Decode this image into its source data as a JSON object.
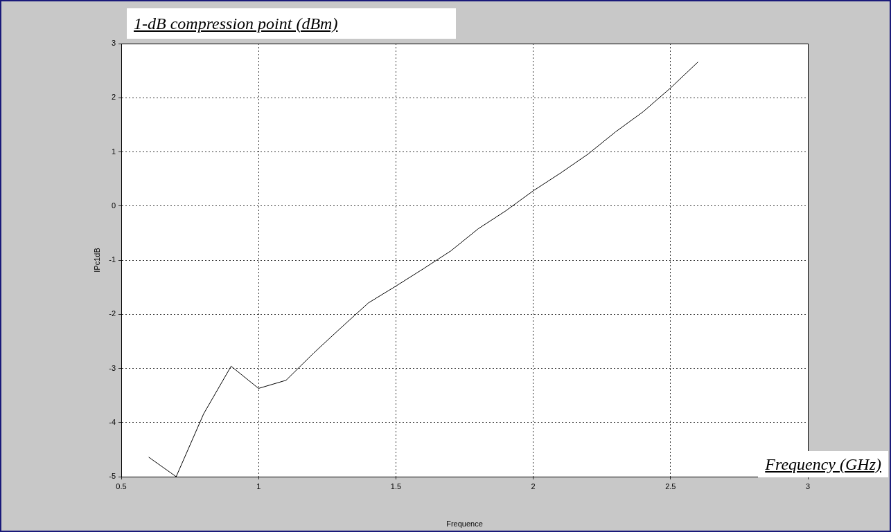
{
  "chart_data": {
    "type": "line",
    "xlabel": "Frequence",
    "ylabel": "IPc1dB",
    "annotations": [
      "1-dB compression point (dBm)",
      "Frequency (GHz)"
    ],
    "x": [
      0.6,
      0.7,
      0.8,
      0.9,
      1.0,
      1.1,
      1.2,
      1.3,
      1.4,
      1.5,
      1.6,
      1.7,
      1.8,
      1.9,
      2.0,
      2.1,
      2.2,
      2.3,
      2.4,
      2.5,
      2.6
    ],
    "series": [
      {
        "color": "#000000",
        "values": [
          -4.64,
          -5.0,
          -3.84,
          -2.96,
          -3.37,
          -3.22,
          -2.72,
          -2.25,
          -1.79,
          -1.48,
          -1.16,
          -0.83,
          -0.42,
          -0.09,
          0.28,
          0.61,
          0.96,
          1.37,
          1.74,
          2.18,
          2.66
        ]
      }
    ],
    "xlim": [
      0.5,
      3
    ],
    "xticks": [
      0.5,
      1,
      1.5,
      2,
      2.5,
      3
    ],
    "ylim": [
      -5,
      3
    ],
    "yticks": [
      -5,
      -4,
      -3,
      -2,
      -1,
      0,
      1,
      2,
      3
    ],
    "grid": true,
    "legend": false,
    "marker": "none",
    "line_style": "solid"
  }
}
